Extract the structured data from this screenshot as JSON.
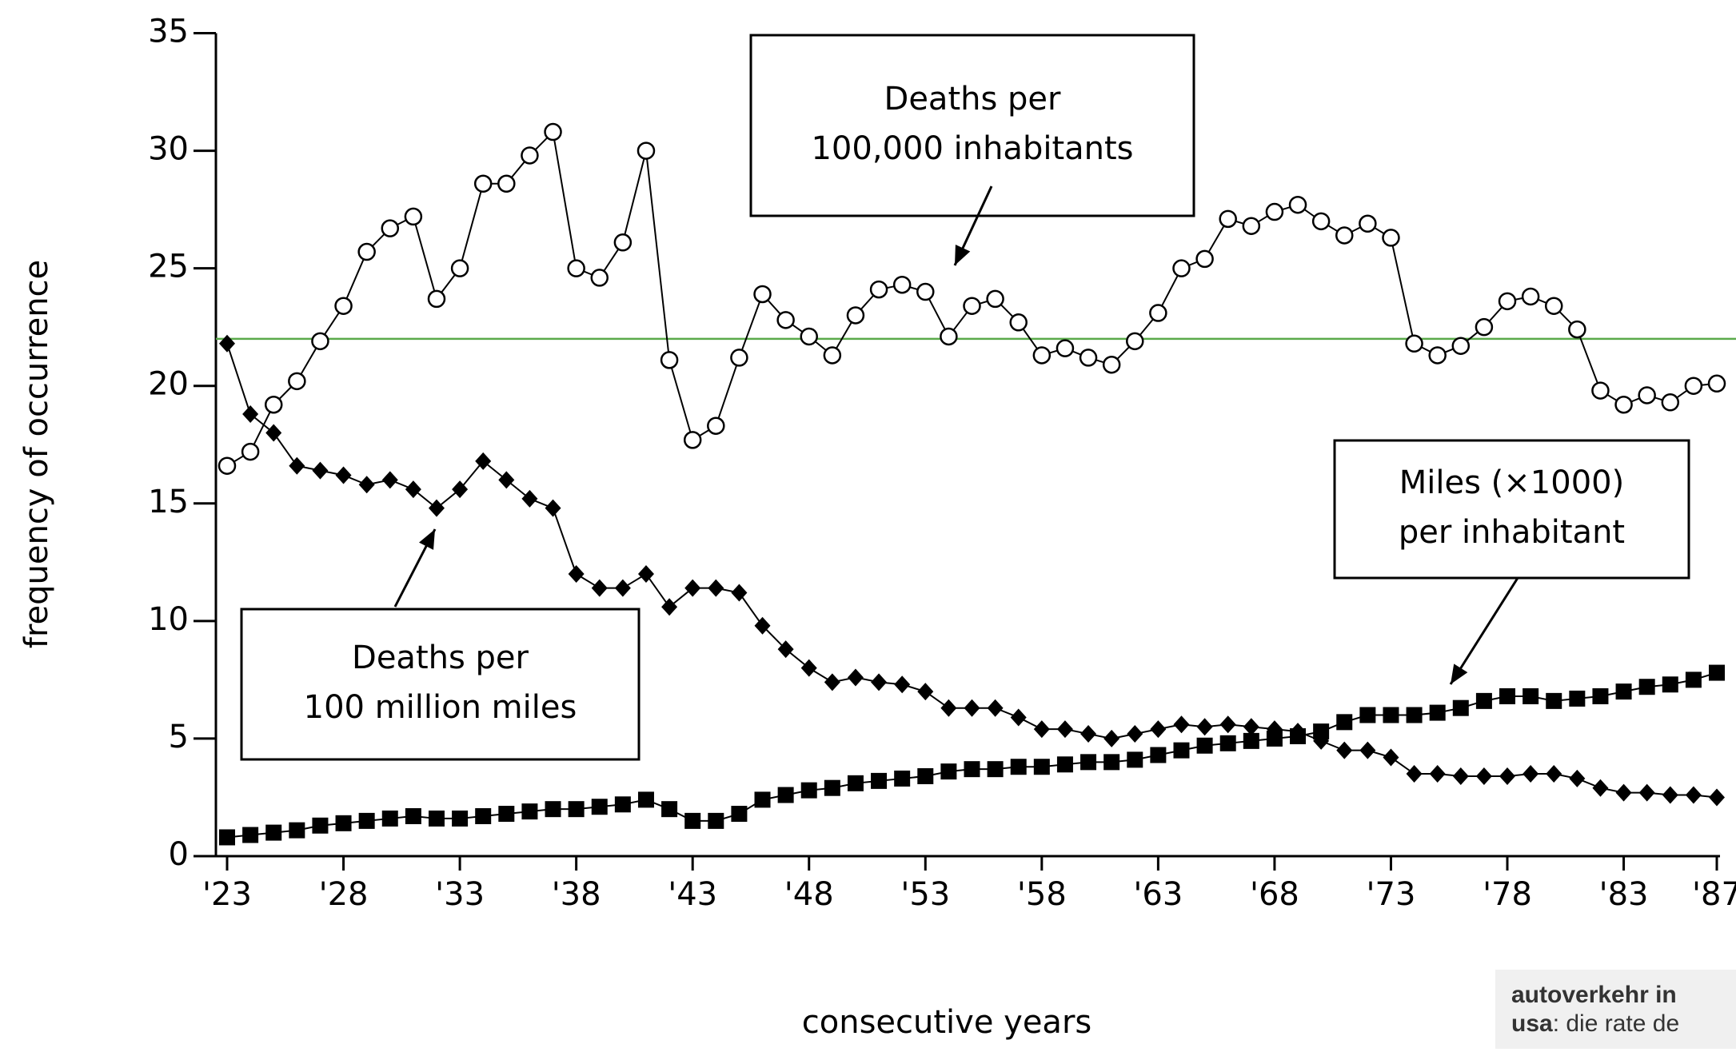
{
  "chart_data": {
    "type": "line",
    "y_label": "frequency of occurrence",
    "x_label": "consecutive years",
    "x": [
      1923,
      1924,
      1925,
      1926,
      1927,
      1928,
      1929,
      1930,
      1931,
      1932,
      1933,
      1934,
      1935,
      1936,
      1937,
      1938,
      1939,
      1940,
      1941,
      1942,
      1943,
      1944,
      1945,
      1946,
      1947,
      1948,
      1949,
      1950,
      1951,
      1952,
      1953,
      1954,
      1955,
      1956,
      1957,
      1958,
      1959,
      1960,
      1961,
      1962,
      1963,
      1964,
      1965,
      1966,
      1967,
      1968,
      1969,
      1970,
      1971,
      1972,
      1973,
      1974,
      1975,
      1976,
      1977,
      1978,
      1979,
      1980,
      1981,
      1982,
      1983,
      1984,
      1985,
      1986,
      1987
    ],
    "series": [
      {
        "name": "Deaths per 100,000 inhabitants",
        "marker": "circle",
        "color": "#000000",
        "values": [
          16.6,
          17.2,
          19.2,
          20.2,
          21.9,
          23.4,
          25.7,
          26.7,
          27.2,
          23.7,
          25.0,
          28.6,
          28.6,
          29.8,
          30.8,
          25.0,
          24.6,
          26.1,
          30.0,
          21.1,
          17.7,
          18.3,
          21.2,
          23.9,
          22.8,
          22.1,
          21.3,
          23.0,
          24.1,
          24.3,
          24.0,
          22.1,
          23.4,
          23.7,
          22.7,
          21.3,
          21.6,
          21.2,
          20.9,
          21.9,
          23.1,
          25.0,
          25.4,
          27.1,
          26.8,
          27.4,
          27.7,
          27.0,
          26.4,
          26.9,
          26.3,
          21.8,
          21.3,
          21.7,
          22.5,
          23.6,
          23.8,
          23.4,
          22.4,
          19.8,
          19.2,
          19.6,
          19.3,
          20.0,
          20.1
        ]
      },
      {
        "name": "Deaths per 100 million miles",
        "marker": "diamond",
        "color": "#000000",
        "values": [
          21.8,
          18.8,
          18.0,
          16.6,
          16.4,
          16.2,
          15.8,
          16.0,
          15.6,
          14.8,
          15.6,
          16.8,
          16.0,
          15.2,
          14.8,
          12.0,
          11.4,
          11.4,
          12.0,
          10.6,
          11.4,
          11.4,
          11.2,
          9.8,
          8.8,
          8.0,
          7.4,
          7.6,
          7.4,
          7.3,
          7.0,
          6.3,
          6.3,
          6.3,
          5.9,
          5.4,
          5.4,
          5.2,
          5.0,
          5.2,
          5.4,
          5.6,
          5.5,
          5.6,
          5.5,
          5.4,
          5.3,
          4.9,
          4.5,
          4.5,
          4.2,
          3.5,
          3.5,
          3.4,
          3.4,
          3.4,
          3.5,
          3.5,
          3.3,
          2.9,
          2.7,
          2.7,
          2.6,
          2.6,
          2.5
        ]
      },
      {
        "name": "Miles (x1000) per inhabitant",
        "marker": "square",
        "color": "#000000",
        "values": [
          0.8,
          0.9,
          1.0,
          1.1,
          1.3,
          1.4,
          1.5,
          1.6,
          1.7,
          1.6,
          1.6,
          1.7,
          1.8,
          1.9,
          2.0,
          2.0,
          2.1,
          2.2,
          2.4,
          2.0,
          1.5,
          1.5,
          1.8,
          2.4,
          2.6,
          2.8,
          2.9,
          3.1,
          3.2,
          3.3,
          3.4,
          3.6,
          3.7,
          3.7,
          3.8,
          3.8,
          3.9,
          4.0,
          4.0,
          4.1,
          4.3,
          4.5,
          4.7,
          4.8,
          4.9,
          5.0,
          5.1,
          5.3,
          5.7,
          6.0,
          6.0,
          6.0,
          6.1,
          6.3,
          6.6,
          6.8,
          6.8,
          6.6,
          6.7,
          6.8,
          7.0,
          7.2,
          7.3,
          7.5,
          7.8
        ]
      }
    ],
    "annotations": [
      {
        "lines": [
          "Deaths per",
          "100,000 inhabitants"
        ]
      },
      {
        "lines": [
          "Deaths per",
          "100 million miles"
        ]
      },
      {
        "lines": [
          "Miles (×1000)",
          "per inhabitant"
        ]
      }
    ],
    "reference_line": {
      "value": 22,
      "color": "#5aaa4a"
    },
    "xlim": [
      1923,
      1987
    ],
    "xticks": [
      {
        "value": 1923,
        "label": "'23"
      },
      {
        "value": 1928,
        "label": "'28"
      },
      {
        "value": 1933,
        "label": "'33"
      },
      {
        "value": 1938,
        "label": "'38"
      },
      {
        "value": 1943,
        "label": "'43"
      },
      {
        "value": 1948,
        "label": "'48"
      },
      {
        "value": 1953,
        "label": "'53"
      },
      {
        "value": 1958,
        "label": "'58"
      },
      {
        "value": 1963,
        "label": "'63"
      },
      {
        "value": 1968,
        "label": "'68"
      },
      {
        "value": 1973,
        "label": "'73"
      },
      {
        "value": 1978,
        "label": "'78"
      },
      {
        "value": 1983,
        "label": "'83"
      },
      {
        "value": 1987,
        "label": "'87"
      }
    ],
    "ylim": [
      0,
      35
    ],
    "yticks": [
      0,
      5,
      10,
      15,
      20,
      25,
      30,
      35
    ]
  },
  "caption": {
    "title": "autoverkehr in",
    "bold": "usa",
    "text": ": die rate de"
  }
}
